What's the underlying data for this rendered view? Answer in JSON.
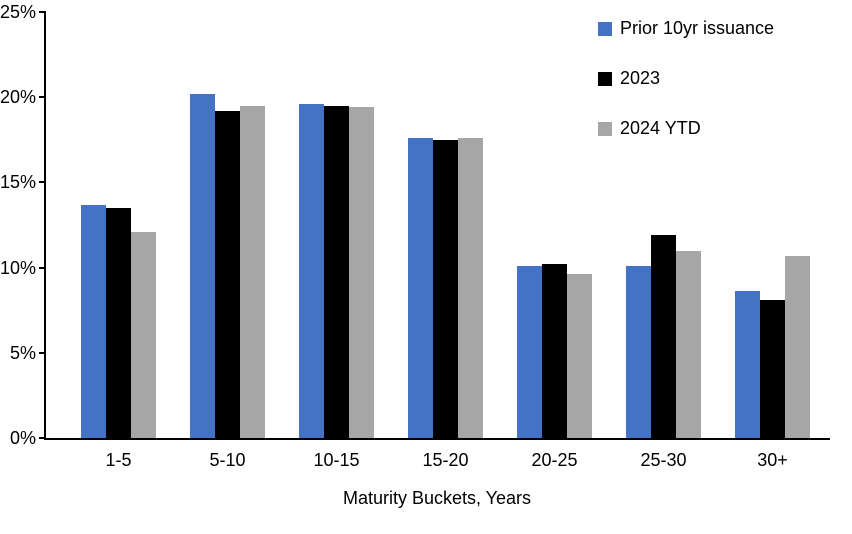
{
  "chart_data": {
    "type": "bar",
    "title": "",
    "xlabel": "Maturity Buckets, Years",
    "ylabel": "",
    "categories": [
      "1-5",
      "5-10",
      "10-15",
      "15-20",
      "20-25",
      "25-30",
      "30+"
    ],
    "series": [
      {
        "name": "Prior 10yr issuance",
        "color": "#4472C4",
        "values": [
          13.7,
          20.2,
          19.6,
          17.6,
          10.1,
          10.1,
          8.6
        ]
      },
      {
        "name": "2023",
        "color": "#000000",
        "values": [
          13.5,
          19.2,
          19.5,
          17.5,
          10.2,
          11.9,
          8.1
        ]
      },
      {
        "name": "2024 YTD",
        "color": "#A6A6A6",
        "values": [
          12.1,
          19.5,
          19.4,
          17.6,
          9.6,
          11.0,
          10.7
        ]
      }
    ],
    "ylim": [
      0,
      25
    ],
    "ytick_step": 5,
    "ytick_labels": [
      "0%",
      "5%",
      "10%",
      "15%",
      "20%",
      "25%"
    ],
    "legend_position": "top-right",
    "grid": false,
    "axis_color": "#000000",
    "background_color": "#FFFFFF"
  }
}
